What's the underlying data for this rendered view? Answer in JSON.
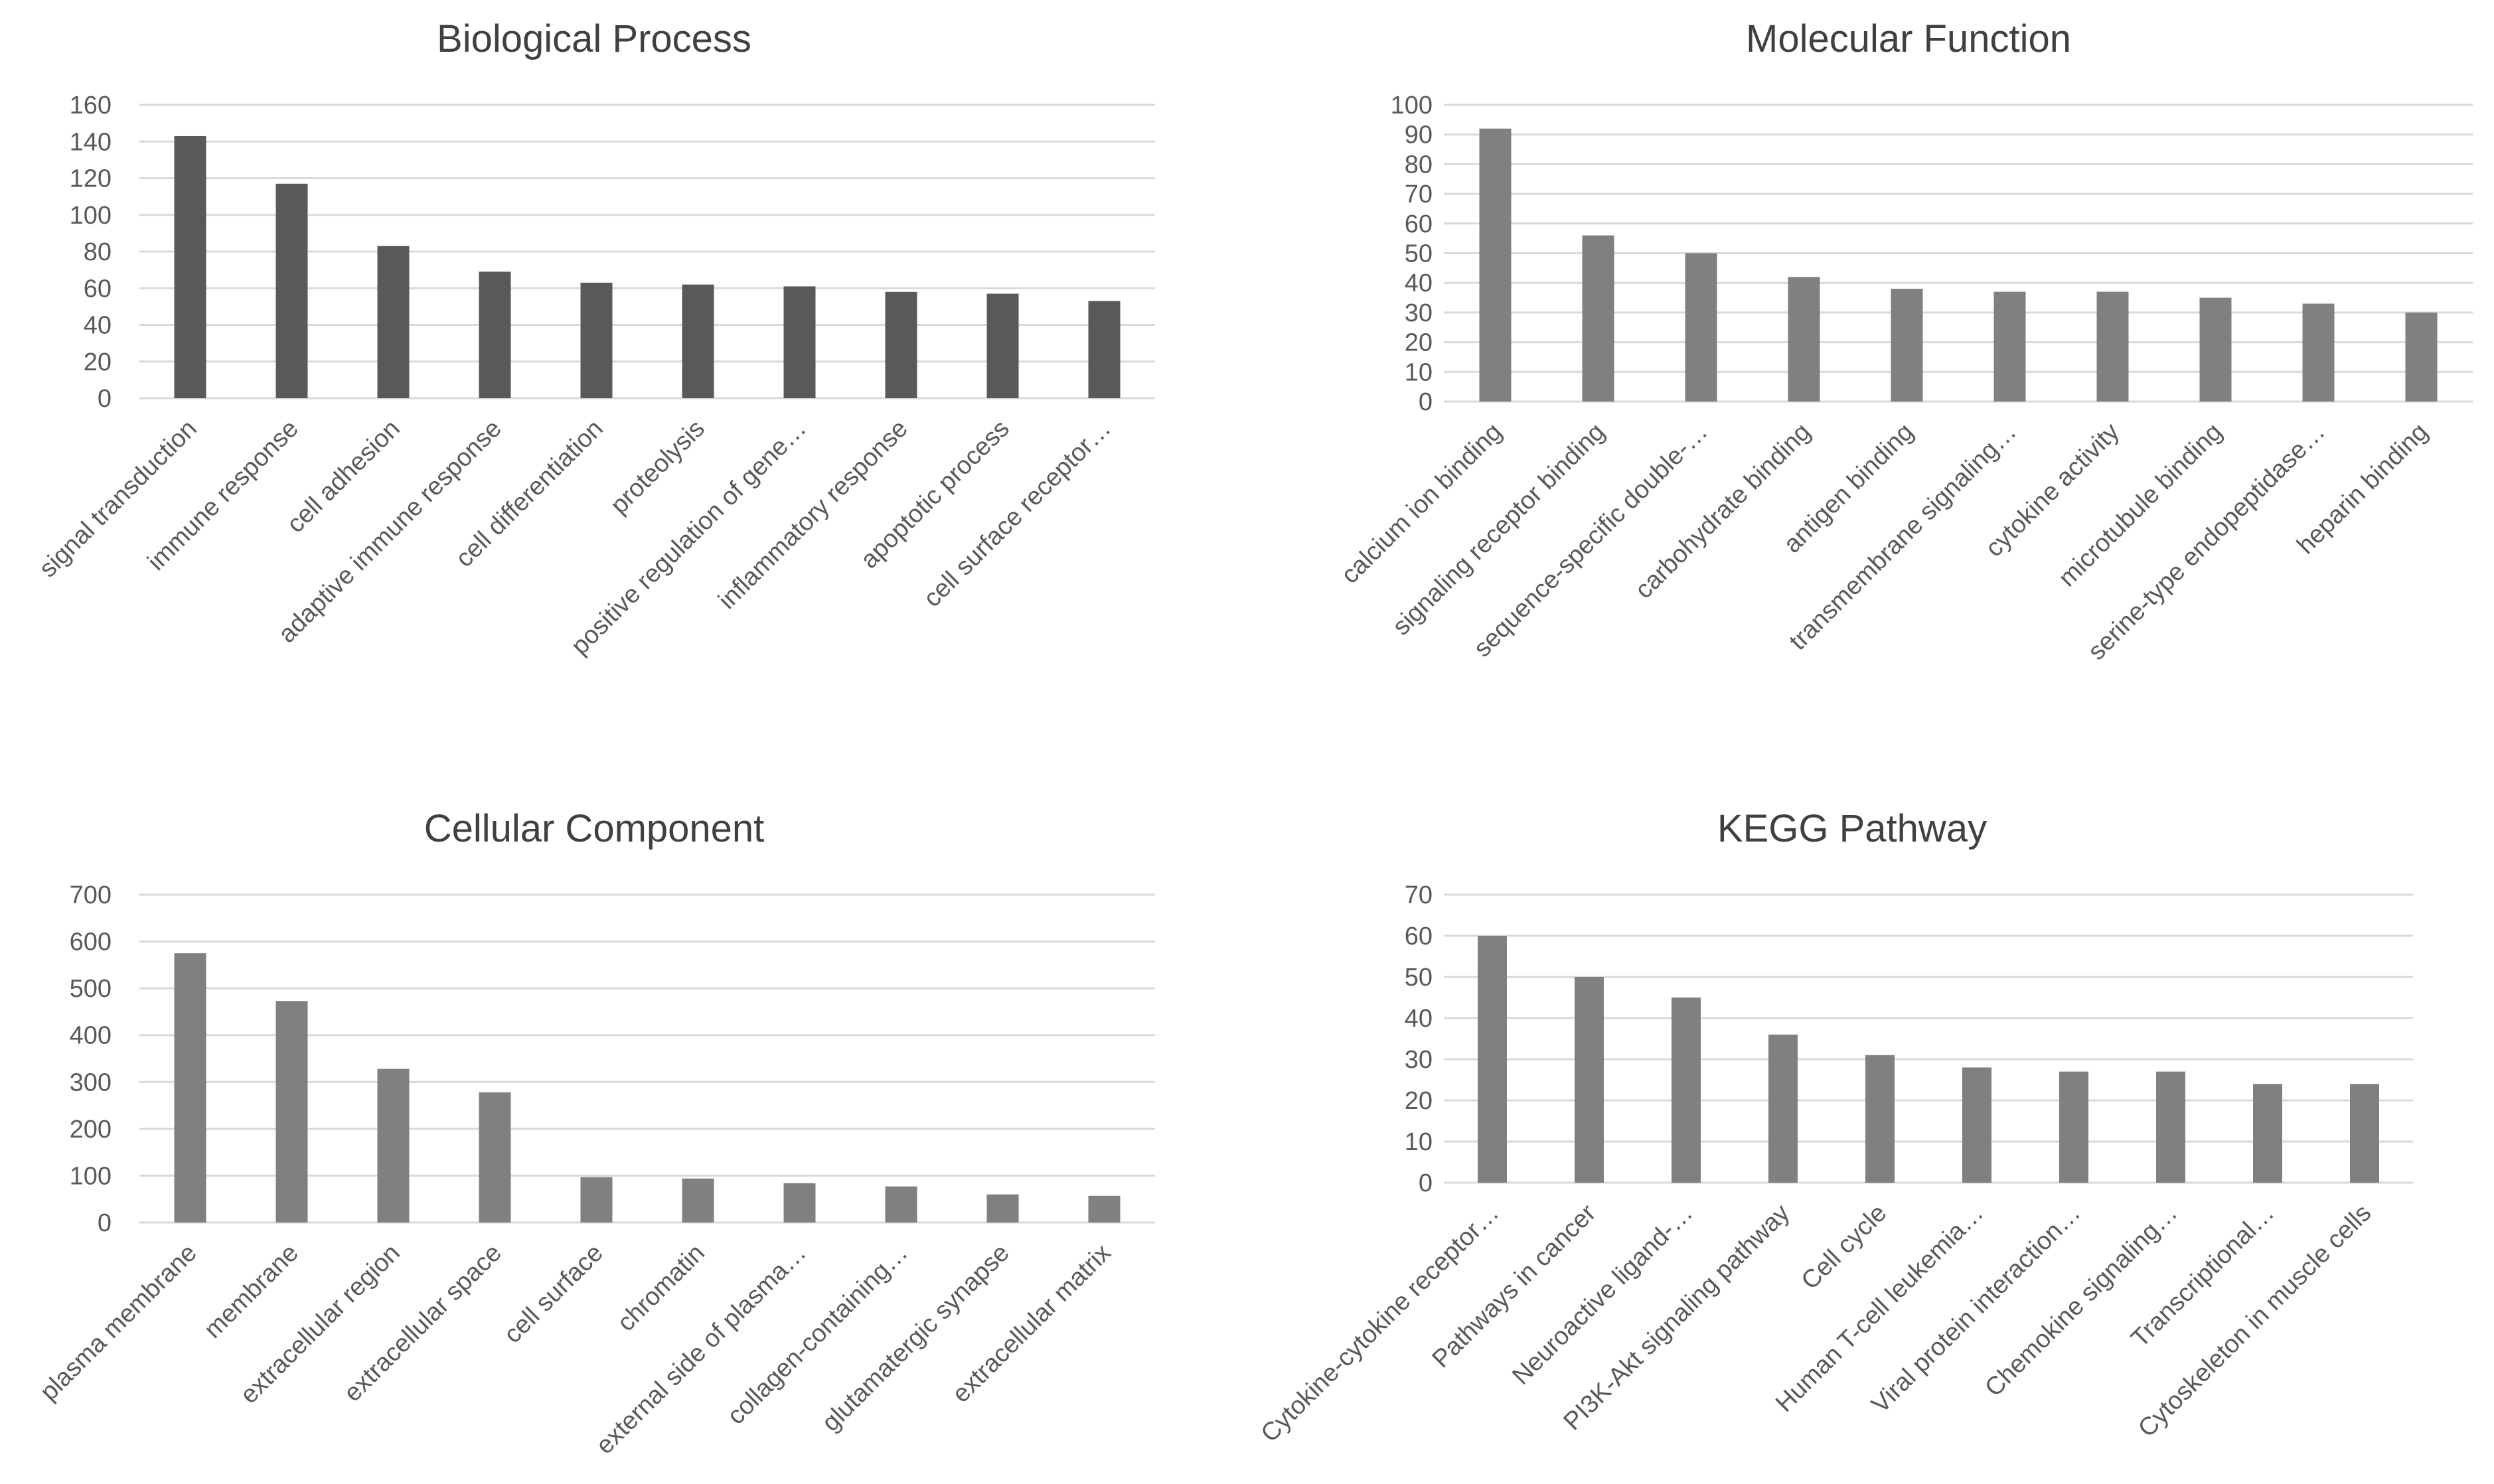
{
  "chart_data": [
    {
      "type": "bar",
      "title": "Biological Process",
      "color": "#595959",
      "xlabel": "",
      "ylabel": "",
      "ylim": [
        0,
        160
      ],
      "yticks": [
        0,
        20,
        40,
        60,
        80,
        100,
        120,
        140,
        160
      ],
      "grid": true,
      "categories": [
        "signal transduction",
        "immune response",
        "cell adhesion",
        "adaptive immune response",
        "cell differentiation",
        "proteolysis",
        "positive regulation of gene…",
        "inflammatory response",
        "apoptotic process",
        "cell surface receptor…"
      ],
      "values": [
        143,
        117,
        83,
        69,
        63,
        62,
        61,
        58,
        57,
        53
      ]
    },
    {
      "type": "bar",
      "title": "Molecular Function",
      "color": "#808080",
      "xlabel": "",
      "ylabel": "",
      "ylim": [
        0,
        100
      ],
      "yticks": [
        0,
        10,
        20,
        30,
        40,
        50,
        60,
        70,
        80,
        90,
        100
      ],
      "grid": true,
      "categories": [
        "calcium ion binding",
        "signaling receptor binding",
        "sequence-specific double-…",
        "carbohydrate binding",
        "antigen binding",
        "transmembrane signaling…",
        "cytokine activity",
        "microtubule binding",
        "serine-type endopeptidase…",
        "heparin binding"
      ],
      "values": [
        92,
        56,
        50,
        42,
        38,
        37,
        37,
        35,
        33,
        30
      ]
    },
    {
      "type": "bar",
      "title": "Cellular Component",
      "color": "#808080",
      "xlabel": "",
      "ylabel": "",
      "ylim": [
        0,
        700
      ],
      "yticks": [
        0,
        100,
        200,
        300,
        400,
        500,
        600,
        700
      ],
      "grid": true,
      "categories": [
        "plasma membrane",
        "membrane",
        "extracellular region",
        "extracellular space",
        "cell surface",
        "chromatin",
        "external side of plasma…",
        "collagen-containing…",
        "glutamatergic synapse",
        "extracellular matrix"
      ],
      "values": [
        575,
        473,
        328,
        278,
        97,
        94,
        84,
        77,
        60,
        57
      ]
    },
    {
      "type": "bar",
      "title": "KEGG Pathway",
      "color": "#808080",
      "xlabel": "",
      "ylabel": "",
      "ylim": [
        0,
        70
      ],
      "yticks": [
        0,
        10,
        20,
        30,
        40,
        50,
        60,
        70
      ],
      "grid": true,
      "categories": [
        "Cytokine-cytokine receptor…",
        "Pathways in cancer",
        "Neuroactive ligand-…",
        "PI3K-Akt signaling pathway",
        "Cell cycle",
        "Human T-cell leukemia…",
        "Viral protein interaction…",
        "Chemokine signaling…",
        "Transcriptional…",
        "Cytoskeleton in muscle cells"
      ],
      "values": [
        60,
        50,
        45,
        36,
        31,
        28,
        27,
        27,
        24,
        24
      ]
    }
  ]
}
